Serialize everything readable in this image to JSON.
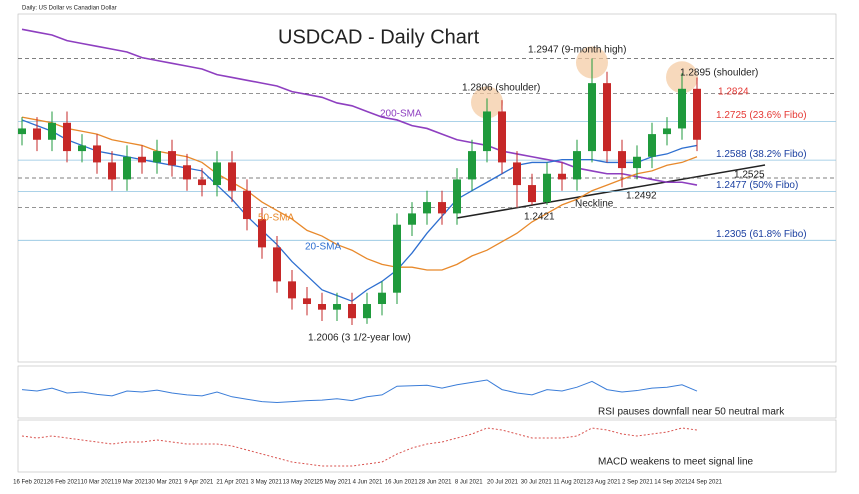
{
  "chart_data": {
    "type": "candlestick",
    "title": "USDCAD - Daily Chart",
    "subtitle": "Daily: US Dollar vs Canadian Dollar",
    "ylim": [
      1.196,
      1.309
    ],
    "open": [
      1.268,
      1.27,
      1.266,
      1.272,
      1.262,
      1.264,
      1.258,
      1.252,
      1.26,
      1.258,
      1.262,
      1.257,
      1.252,
      1.25,
      1.258,
      1.248,
      1.238,
      1.228,
      1.216,
      1.21,
      1.208,
      1.206,
      1.208,
      1.203,
      1.208,
      1.212,
      1.236,
      1.24,
      1.244,
      1.24,
      1.252,
      1.262,
      1.276,
      1.258,
      1.25,
      1.244,
      1.254,
      1.252,
      1.262,
      1.286,
      1.262,
      1.256,
      1.26,
      1.268,
      1.27,
      1.284
    ],
    "high": [
      1.274,
      1.274,
      1.276,
      1.276,
      1.268,
      1.268,
      1.262,
      1.264,
      1.264,
      1.266,
      1.266,
      1.261,
      1.256,
      1.262,
      1.262,
      1.252,
      1.242,
      1.232,
      1.22,
      1.214,
      1.212,
      1.212,
      1.212,
      1.212,
      1.216,
      1.24,
      1.244,
      1.248,
      1.248,
      1.256,
      1.266,
      1.2806,
      1.28,
      1.262,
      1.254,
      1.258,
      1.258,
      1.266,
      1.2947,
      1.29,
      1.266,
      1.264,
      1.272,
      1.274,
      1.2895,
      1.288
    ],
    "low": [
      1.264,
      1.262,
      1.262,
      1.258,
      1.258,
      1.254,
      1.248,
      1.248,
      1.254,
      1.254,
      1.253,
      1.248,
      1.246,
      1.246,
      1.244,
      1.234,
      1.224,
      1.212,
      1.206,
      1.204,
      1.202,
      1.202,
      1.2006,
      1.201,
      1.204,
      1.208,
      1.232,
      1.236,
      1.236,
      1.236,
      1.248,
      1.258,
      1.254,
      1.2421,
      1.243,
      1.243,
      1.248,
      1.248,
      1.258,
      1.258,
      1.2492,
      1.252,
      1.256,
      1.264,
      1.266,
      1.262
    ],
    "close": [
      1.27,
      1.266,
      1.272,
      1.262,
      1.264,
      1.258,
      1.252,
      1.26,
      1.258,
      1.262,
      1.257,
      1.252,
      1.25,
      1.258,
      1.248,
      1.238,
      1.228,
      1.216,
      1.21,
      1.208,
      1.206,
      1.208,
      1.203,
      1.208,
      1.212,
      1.236,
      1.24,
      1.244,
      1.24,
      1.252,
      1.262,
      1.276,
      1.258,
      1.25,
      1.244,
      1.254,
      1.252,
      1.262,
      1.286,
      1.262,
      1.256,
      1.26,
      1.268,
      1.27,
      1.284,
      1.266
    ],
    "up_color": "#1f9a3c",
    "down_color": "#c62828",
    "series": [
      {
        "name": "200-SMA",
        "color": "#8e3fc0",
        "values": [
          1.305,
          1.304,
          1.303,
          1.301,
          1.3,
          1.299,
          1.298,
          1.297,
          1.295,
          1.294,
          1.293,
          1.292,
          1.291,
          1.289,
          1.288,
          1.287,
          1.286,
          1.285,
          1.283,
          1.282,
          1.281,
          1.279,
          1.278,
          1.276,
          1.274,
          1.273,
          1.271,
          1.27,
          1.268,
          1.266,
          1.265,
          1.264,
          1.262,
          1.261,
          1.26,
          1.259,
          1.258,
          1.256,
          1.255,
          1.254,
          1.254,
          1.253,
          1.252,
          1.251,
          1.251,
          1.25
        ]
      },
      {
        "name": "50-SMA",
        "color": "#e8892b",
        "values": [
          1.274,
          1.273,
          1.272,
          1.27,
          1.269,
          1.268,
          1.266,
          1.265,
          1.264,
          1.262,
          1.261,
          1.26,
          1.258,
          1.254,
          1.251,
          1.248,
          1.244,
          1.241,
          1.238,
          1.234,
          1.232,
          1.229,
          1.227,
          1.224,
          1.222,
          1.221,
          1.221,
          1.22,
          1.22,
          1.222,
          1.225,
          1.227,
          1.23,
          1.233,
          1.237,
          1.24,
          1.243,
          1.245,
          1.248,
          1.25,
          1.252,
          1.254,
          1.255,
          1.257,
          1.258,
          1.26
        ]
      },
      {
        "name": "20-SMA",
        "color": "#2e6fd0",
        "values": [
          1.273,
          1.271,
          1.269,
          1.266,
          1.264,
          1.262,
          1.261,
          1.26,
          1.259,
          1.258,
          1.257,
          1.256,
          1.255,
          1.25,
          1.245,
          1.239,
          1.234,
          1.229,
          1.223,
          1.218,
          1.213,
          1.211,
          1.209,
          1.213,
          1.216,
          1.22,
          1.226,
          1.233,
          1.239,
          1.245,
          1.248,
          1.251,
          1.254,
          1.257,
          1.258,
          1.258,
          1.259,
          1.259,
          1.259,
          1.258,
          1.258,
          1.258,
          1.26,
          1.261,
          1.263,
          1.264
        ]
      }
    ],
    "fibo_levels": [
      {
        "value": 1.2725,
        "label": "1.2725 (23.6% Fibo)",
        "color": "#e53935"
      },
      {
        "value": 1.2588,
        "label": "1.2588 (38.2% Fibo)",
        "color": "#1a3fa0"
      },
      {
        "value": 1.2477,
        "label": "1.2477 (50% Fibo)",
        "color": "#1a3fa0"
      },
      {
        "value": 1.2305,
        "label": "1.2305 (61.8% Fibo)",
        "color": "#1a3fa0"
      }
    ],
    "dashed_levels": [
      1.2947,
      1.2824,
      1.2525,
      1.2421
    ],
    "annotations": [
      "1.2947 (9-month high)",
      "1.2806 (shoulder)",
      "1.2895 (shoulder)",
      "1.2824",
      "200-SMA",
      "50-SMA",
      "20-SMA",
      "1.2525",
      "1.2492",
      "1.2421",
      "Neckline",
      "1.2006 (3 1/2-year low)"
    ],
    "rsi": {
      "values": [
        55,
        52,
        58,
        48,
        50,
        45,
        42,
        52,
        50,
        54,
        48,
        44,
        42,
        50,
        40,
        35,
        30,
        28,
        30,
        32,
        33,
        36,
        32,
        40,
        44,
        62,
        63,
        64,
        58,
        65,
        70,
        75,
        55,
        48,
        44,
        55,
        52,
        60,
        72,
        55,
        50,
        53,
        58,
        60,
        65,
        52
      ],
      "ylim": [
        0,
        100
      ],
      "color": "#3b7dd8",
      "note": "RSI pauses downfall near 50 neutral mark"
    },
    "macd": {
      "values": [
        0.002,
        0.001,
        0.002,
        0.001,
        0.0,
        -0.001,
        -0.002,
        -0.001,
        -0.001,
        0.0,
        -0.001,
        -0.002,
        -0.002,
        -0.002,
        -0.003,
        -0.005,
        -0.007,
        -0.009,
        -0.011,
        -0.012,
        -0.013,
        -0.013,
        -0.013,
        -0.012,
        -0.011,
        -0.007,
        -0.004,
        -0.002,
        -0.001,
        0.001,
        0.003,
        0.006,
        0.005,
        0.003,
        0.001,
        0.001,
        0.001,
        0.002,
        0.006,
        0.005,
        0.003,
        0.002,
        0.003,
        0.004,
        0.006,
        0.005
      ],
      "ylim": [
        -0.015,
        0.009
      ],
      "color": "#d9534f",
      "note": "MACD weakens to meet signal line"
    },
    "x_labels": [
      "16 Feb 2021",
      "26 Feb 2021",
      "10 Mar 2021",
      "19 Mar 2021",
      "30 Mar 2021",
      "9 Apr 2021",
      "21 Apr 2021",
      "3 May 2021",
      "13 May 2021",
      "25 May 2021",
      "4 Jun 2021",
      "16 Jun 2021",
      "28 Jun 2021",
      "8 Jul 2021",
      "20 Jul 2021",
      "30 Jul 2021",
      "11 Aug 2021",
      "23 Aug 2021",
      "2 Sep 2021",
      "14 Sep 2021",
      "24 Sep 2021"
    ]
  }
}
